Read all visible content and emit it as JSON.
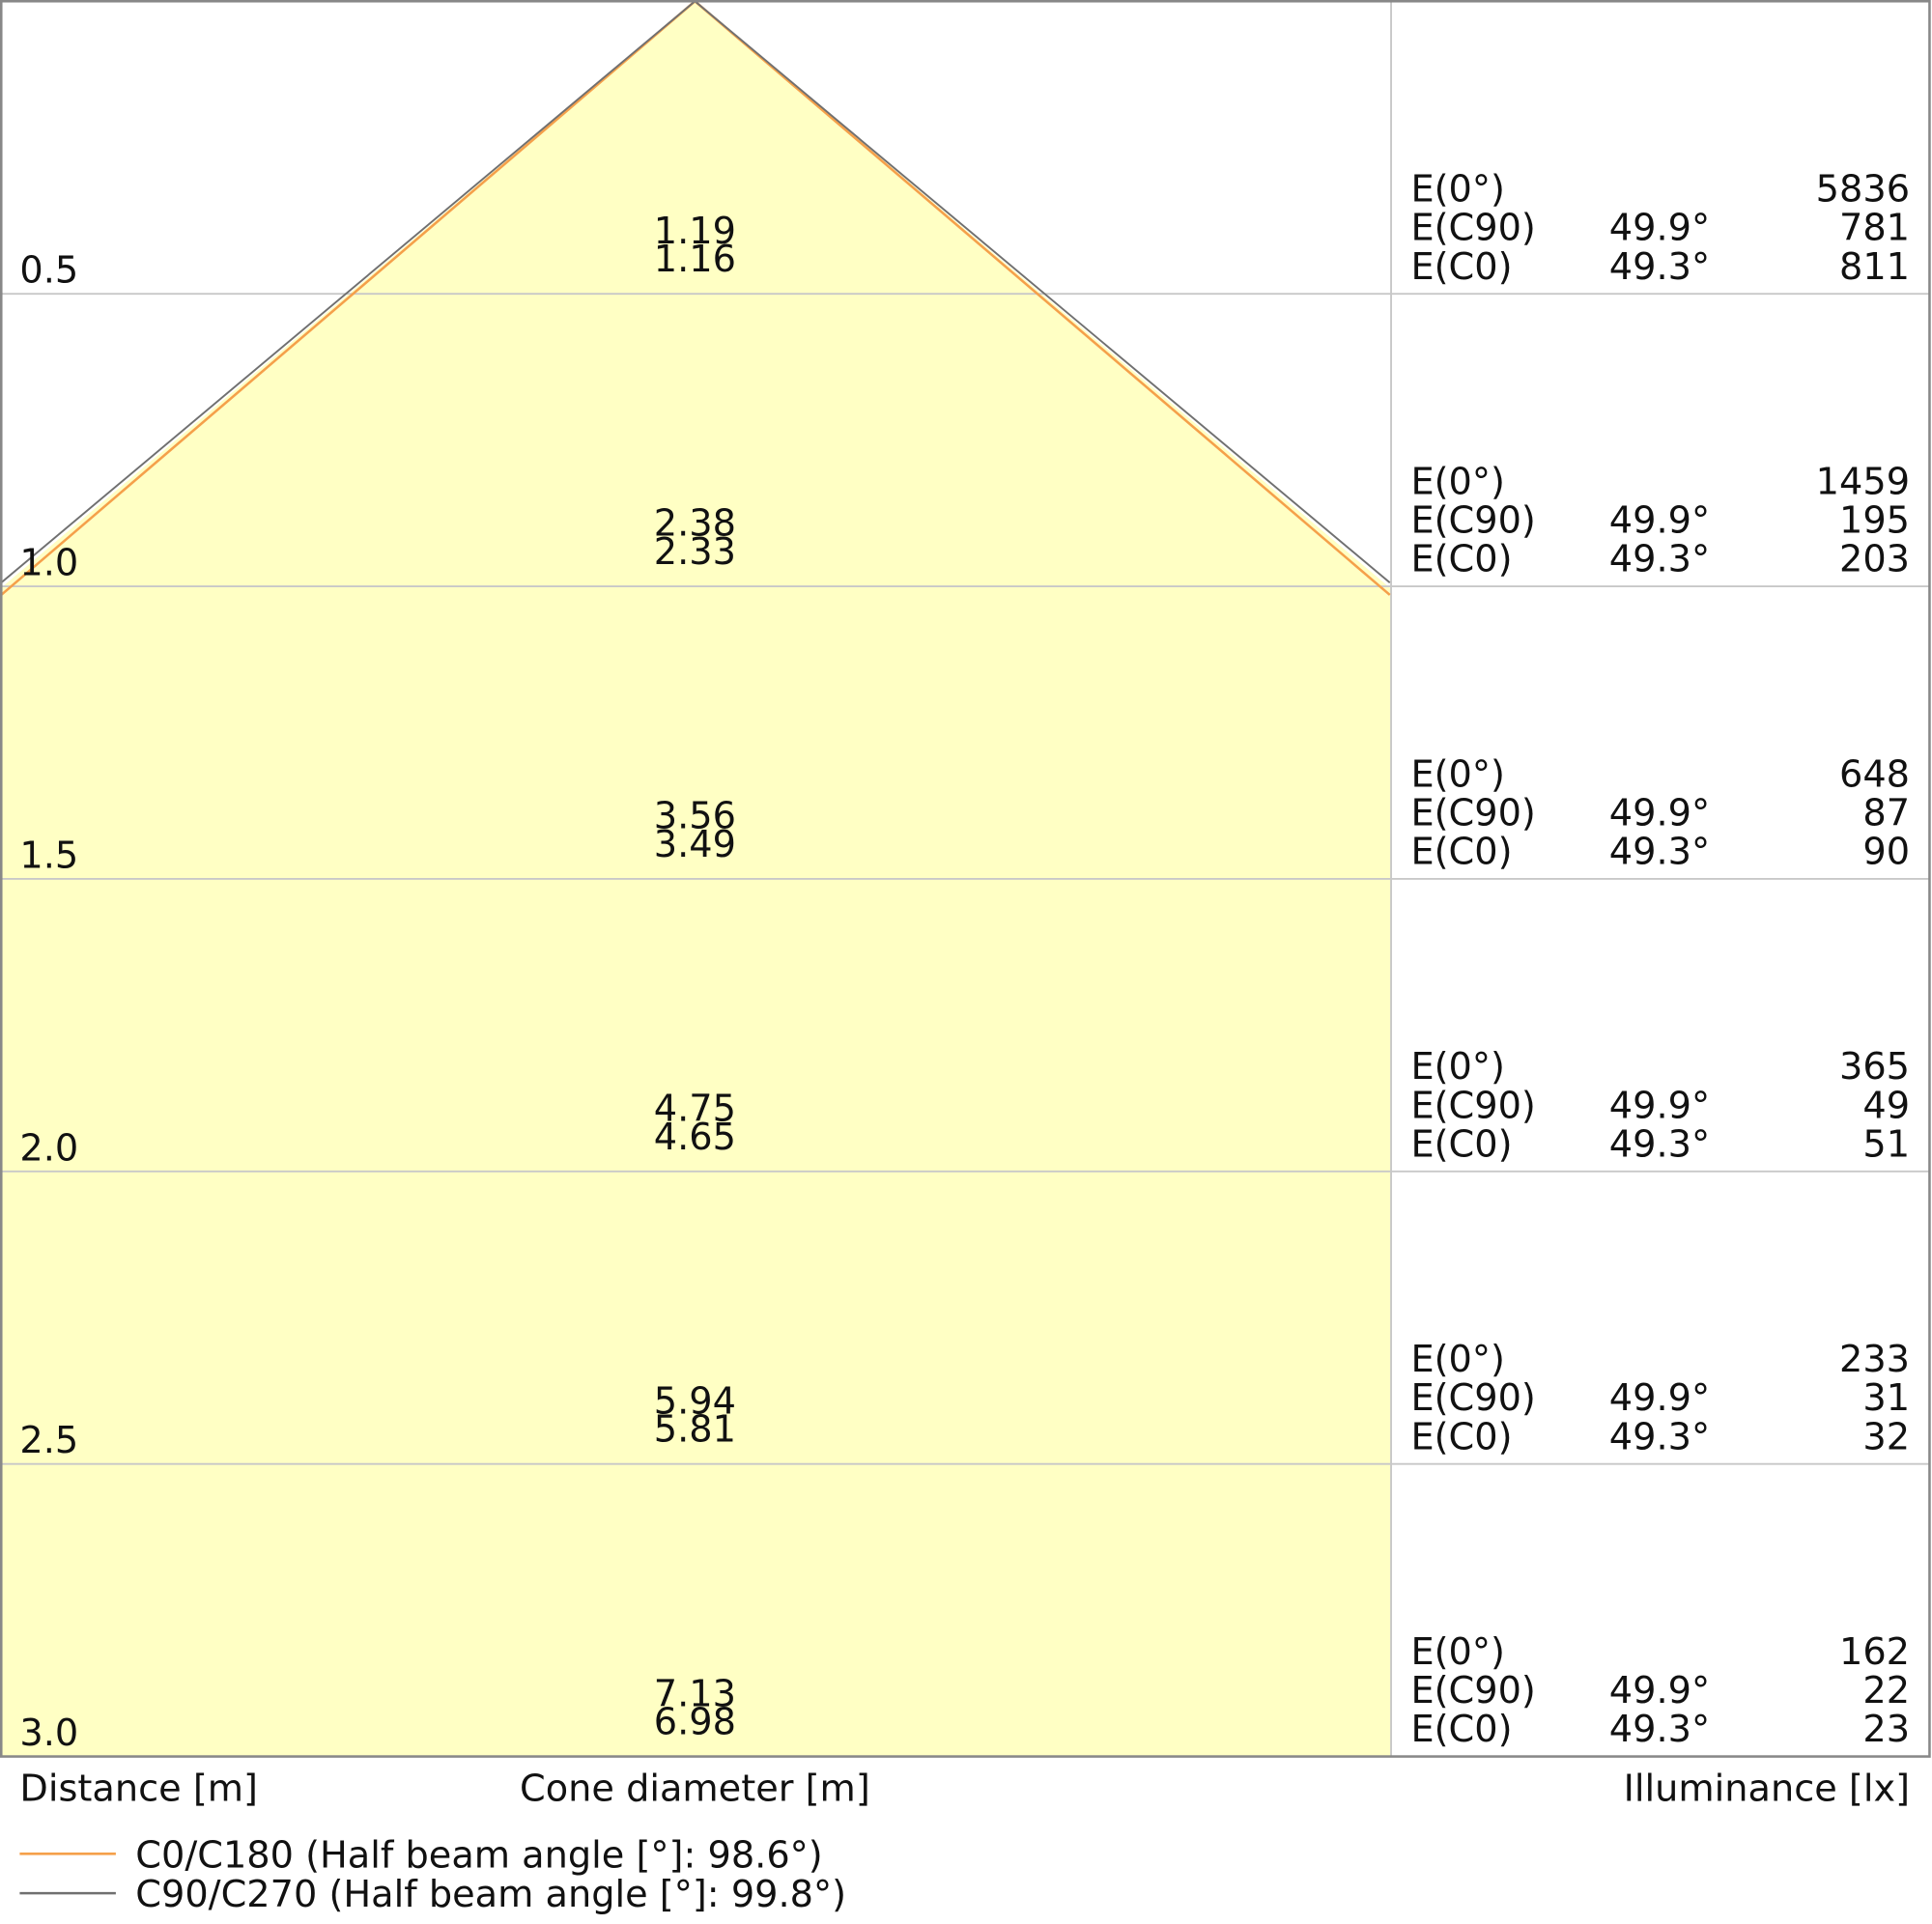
{
  "rows": [
    {
      "distance": "0.5",
      "diameters": [
        "1.19",
        "1.16"
      ],
      "illuminance": [
        {
          "label": "E(0°)",
          "value": "5836"
        },
        {
          "label": "E(C90)",
          "angle": "49.9°",
          "value": "781"
        },
        {
          "label": "E(C0)",
          "angle": "49.3°",
          "value": "811"
        }
      ]
    },
    {
      "distance": "1.0",
      "diameters": [
        "2.38",
        "2.33"
      ],
      "illuminance": [
        {
          "label": "E(0°)",
          "value": "1459"
        },
        {
          "label": "E(C90)",
          "angle": "49.9°",
          "value": "195"
        },
        {
          "label": "E(C0)",
          "angle": "49.3°",
          "value": "203"
        }
      ]
    },
    {
      "distance": "1.5",
      "diameters": [
        "3.56",
        "3.49"
      ],
      "illuminance": [
        {
          "label": "E(0°)",
          "value": "648"
        },
        {
          "label": "E(C90)",
          "angle": "49.9°",
          "value": "87"
        },
        {
          "label": "E(C0)",
          "angle": "49.3°",
          "value": "90"
        }
      ]
    },
    {
      "distance": "2.0",
      "diameters": [
        "4.75",
        "4.65"
      ],
      "illuminance": [
        {
          "label": "E(0°)",
          "value": "365"
        },
        {
          "label": "E(C90)",
          "angle": "49.9°",
          "value": "49"
        },
        {
          "label": "E(C0)",
          "angle": "49.3°",
          "value": "51"
        }
      ]
    },
    {
      "distance": "2.5",
      "diameters": [
        "5.94",
        "5.81"
      ],
      "illuminance": [
        {
          "label": "E(0°)",
          "value": "233"
        },
        {
          "label": "E(C90)",
          "angle": "49.9°",
          "value": "31"
        },
        {
          "label": "E(C0)",
          "angle": "49.3°",
          "value": "32"
        }
      ]
    },
    {
      "distance": "3.0",
      "diameters": [
        "7.13",
        "6.98"
      ],
      "illuminance": [
        {
          "label": "E(0°)",
          "value": "162"
        },
        {
          "label": "E(C90)",
          "angle": "49.9°",
          "value": "22"
        },
        {
          "label": "E(C0)",
          "angle": "49.3°",
          "value": "23"
        }
      ]
    }
  ],
  "axis_labels": {
    "distance": "Distance [m]",
    "diameter": "Cone diameter [m]",
    "illuminance": "Illuminance [lx]"
  },
  "legend": [
    {
      "name": "C0/C180 (Half beam angle [°]: 98.6°)",
      "color": "#f5a04a"
    },
    {
      "name": "C90/C270 (Half beam angle [°]: 99.8°)",
      "color": "#707070"
    }
  ]
}
